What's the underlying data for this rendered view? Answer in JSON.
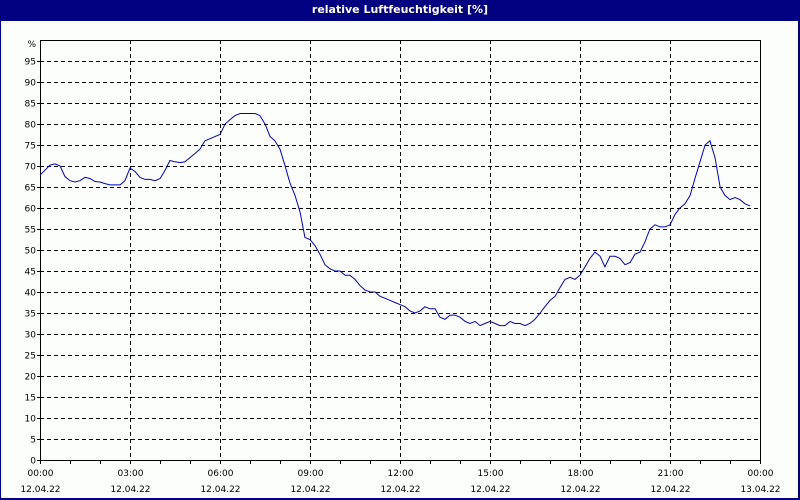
{
  "window": {
    "title": "relative Luftfeuchtigkeit [%]"
  },
  "colors": {
    "frame": "#000080",
    "background": "#fbfefb",
    "line": "#0000c8",
    "grid": "#000000"
  },
  "chart_data": {
    "type": "line",
    "title": "relative Luftfeuchtigkeit [%]",
    "xlabel": "",
    "ylabel": "%",
    "ylim": [
      0,
      100
    ],
    "xlim_hours": [
      0,
      24
    ],
    "grid": true,
    "legend": null,
    "y_ticks": [
      0,
      5,
      10,
      15,
      20,
      25,
      30,
      35,
      40,
      45,
      50,
      55,
      60,
      65,
      70,
      75,
      80,
      85,
      90,
      95
    ],
    "y_top_label": "%",
    "x_ticks": [
      {
        "hour": 0,
        "time": "00:00",
        "date": "12.04.22"
      },
      {
        "hour": 3,
        "time": "03:00",
        "date": "12.04.22"
      },
      {
        "hour": 6,
        "time": "06:00",
        "date": "12.04.22"
      },
      {
        "hour": 9,
        "time": "09:00",
        "date": "12.04.22"
      },
      {
        "hour": 12,
        "time": "12:00",
        "date": "12.04.22"
      },
      {
        "hour": 15,
        "time": "15:00",
        "date": "12.04.22"
      },
      {
        "hour": 18,
        "time": "18:00",
        "date": "12.04.22"
      },
      {
        "hour": 21,
        "time": "21:00",
        "date": "12.04.22"
      },
      {
        "hour": 24,
        "time": "00:00",
        "date": "13.04.22"
      }
    ],
    "series": [
      {
        "name": "relative Luftfeuchtigkeit",
        "x_hours": [
          0,
          0.33,
          0.5,
          0.67,
          0.83,
          1.0,
          1.17,
          1.33,
          1.5,
          1.67,
          1.83,
          2.0,
          2.17,
          2.33,
          2.5,
          2.67,
          2.83,
          3.0,
          3.17,
          3.33,
          3.5,
          3.67,
          3.83,
          4.0,
          4.17,
          4.33,
          4.5,
          4.67,
          4.83,
          5.0,
          5.17,
          5.33,
          5.5,
          5.67,
          5.83,
          6.0,
          6.17,
          6.33,
          6.5,
          6.67,
          6.83,
          7.0,
          7.17,
          7.33,
          7.5,
          7.67,
          7.83,
          8.0,
          8.17,
          8.33,
          8.5,
          8.67,
          8.83,
          9.0,
          9.17,
          9.33,
          9.5,
          9.67,
          9.83,
          10.0,
          10.17,
          10.33,
          10.5,
          10.67,
          10.83,
          11.0,
          11.17,
          11.33,
          11.5,
          11.67,
          11.83,
          12.0,
          12.17,
          12.33,
          12.5,
          12.67,
          12.83,
          13.0,
          13.17,
          13.33,
          13.5,
          13.67,
          13.83,
          14.0,
          14.17,
          14.33,
          14.5,
          14.67,
          14.83,
          15.0,
          15.17,
          15.33,
          15.5,
          15.67,
          15.83,
          16.0,
          16.17,
          16.33,
          16.5,
          16.67,
          16.83,
          17.0,
          17.17,
          17.33,
          17.5,
          17.67,
          17.83,
          18.0,
          18.17,
          18.33,
          18.5,
          18.67,
          18.83,
          19.0,
          19.17,
          19.33,
          19.5,
          19.67,
          19.83,
          20.0,
          20.17,
          20.33,
          20.5,
          20.67,
          20.83,
          21.0,
          21.17,
          21.33,
          21.5,
          21.67,
          21.83,
          22.0,
          22.17,
          22.33,
          22.5,
          22.67,
          22.83,
          23.0,
          23.17,
          23.33,
          23.5,
          23.67,
          23.83,
          24.0
        ],
        "values": [
          67.8,
          70.2,
          70.5,
          70.0,
          67.5,
          66.5,
          66.2,
          66.5,
          67.3,
          67.0,
          66.3,
          66.2,
          65.8,
          65.5,
          65.5,
          65.5,
          66.5,
          69.5,
          68.7,
          67.3,
          66.8,
          66.8,
          66.5,
          67.0,
          69.0,
          71.3,
          71.0,
          70.8,
          71.0,
          72.0,
          73.0,
          74.0,
          76.0,
          76.5,
          77.0,
          77.5,
          80.0,
          81.0,
          82.0,
          82.5,
          82.5,
          82.5,
          82.5,
          82.0,
          80.0,
          77.0,
          76.0,
          74.0,
          70.0,
          66.0,
          63.0,
          59.0,
          53.0,
          52.5,
          51.0,
          49.0,
          46.5,
          45.5,
          45.0,
          45.0,
          44.0,
          44.0,
          43.0,
          41.5,
          40.5,
          40.0,
          40.0,
          39.0,
          38.5,
          38.0,
          37.5,
          37.0,
          36.5,
          35.5,
          35.0,
          35.5,
          36.5,
          36.0,
          36.0,
          34.0,
          33.5,
          34.5,
          34.5,
          34.0,
          33.0,
          32.5,
          33.0,
          32.0,
          32.5,
          33.0,
          32.5,
          32.0,
          32.0,
          33.0,
          32.5,
          32.5,
          32.0,
          32.5,
          33.5,
          35.0,
          36.5,
          38.0,
          39.0,
          41.0,
          43.0,
          43.5,
          43.0,
          44.0,
          46.0,
          48.0,
          49.5,
          48.5,
          46.0,
          48.5,
          48.5,
          48.0,
          46.5,
          47.0,
          49.0,
          49.5,
          52.0,
          55.0,
          56.0,
          55.5,
          55.5,
          56.0,
          58.5,
          60.0,
          61.0,
          63.0,
          67.0,
          71.0,
          75.0,
          76.0,
          72.0,
          65.0,
          63.0,
          62.0,
          62.5,
          62.0,
          61.0,
          60.5
        ]
      }
    ]
  }
}
